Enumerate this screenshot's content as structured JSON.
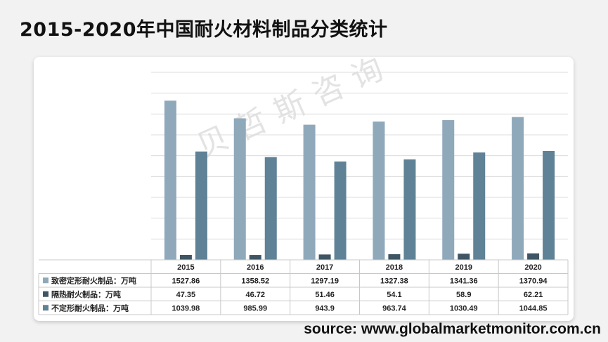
{
  "title": "2015-2020年中国耐火材料制品分类统计",
  "watermark": "贝哲斯咨询",
  "source": "source: www.globalmarketmonitor.com.cn",
  "chart_data": {
    "type": "bar",
    "categories": [
      "2015",
      "2016",
      "2017",
      "2018",
      "2019",
      "2020"
    ],
    "series": [
      {
        "name": "致密定形耐火制品：万吨",
        "values": [
          1527.86,
          1358.52,
          1297.19,
          1327.38,
          1341.36,
          1370.94
        ],
        "color": "#8fa9bb"
      },
      {
        "name": "隔热耐火制品：万吨",
        "values": [
          47.35,
          46.72,
          51.46,
          54.1,
          58.9,
          62.21
        ],
        "color": "#3f5564"
      },
      {
        "name": "不定形耐火制品：万吨",
        "values": [
          1039.98,
          985.99,
          943.9,
          963.74,
          1030.49,
          1044.85
        ],
        "color": "#5f8296"
      }
    ],
    "value_labels": [
      [
        "1527.86",
        "1358.52",
        "1297.19",
        "1327.38",
        "1341.36",
        "1370.94"
      ],
      [
        "47.35",
        "46.72",
        "51.46",
        "54.1",
        "58.9",
        "62.21"
      ],
      [
        "1039.98",
        "985.99",
        "943.9",
        "963.74",
        "1030.49",
        "1044.85"
      ]
    ],
    "ylim": [
      0,
      1800
    ],
    "grid": true,
    "legend": "data-table"
  }
}
